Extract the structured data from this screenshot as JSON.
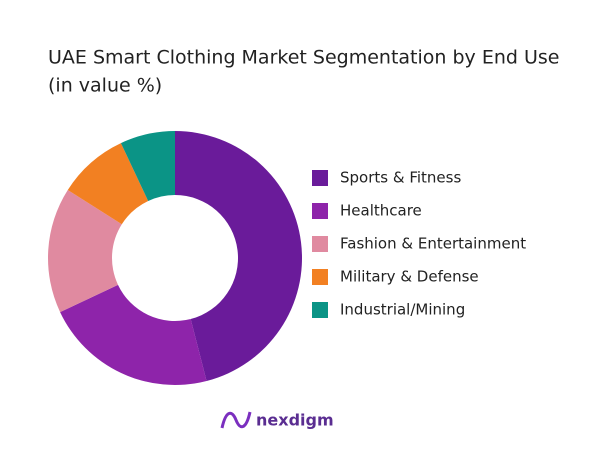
{
  "chart_data": {
    "type": "donut",
    "title": "UAE Smart Clothing Market Segmentation by End Use",
    "subtitle": "(in value %)",
    "categories": [
      "Sports & Fitness",
      "Healthcare",
      "Fashion & Entertainment",
      "Military & Defense",
      "Industrial/Mining"
    ],
    "values": [
      46,
      22,
      16,
      9,
      7
    ],
    "colors": [
      "#6a1b9a",
      "#8e24aa",
      "#e08aa0",
      "#f28022",
      "#0b9486"
    ],
    "legend": "right",
    "brand": "nexdigm"
  }
}
